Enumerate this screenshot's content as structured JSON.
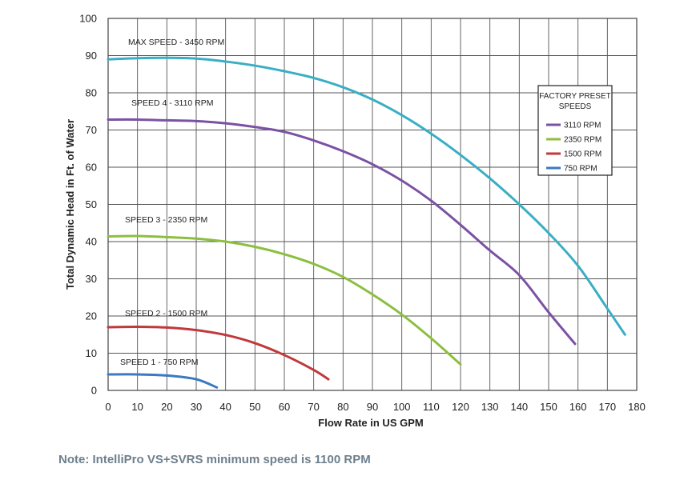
{
  "chart_data": {
    "type": "line",
    "xlabel": "Flow Rate in US GPM",
    "ylabel": "Total Dynamic Head in Ft. of Water",
    "xlim": [
      0,
      180
    ],
    "ylim": [
      0,
      100
    ],
    "xticks": [
      "0",
      "10",
      "20",
      "30",
      "40",
      "50",
      "60",
      "70",
      "80",
      "90",
      "100",
      "110",
      "120",
      "130",
      "140",
      "150",
      "160",
      "170",
      "180"
    ],
    "yticks": [
      "0",
      "10",
      "20",
      "30",
      "40",
      "50",
      "60",
      "70",
      "80",
      "90",
      "100"
    ],
    "grid": true,
    "legend_position": "right",
    "legend": {
      "title": [
        "FACTORY PRESET",
        "SPEEDS"
      ],
      "entries": [
        {
          "label": "3110 RPM",
          "color": "#7b52a3"
        },
        {
          "label": "2350 RPM",
          "color": "#8cbf3f"
        },
        {
          "label": "1500 RPM",
          "color": "#c0393b"
        },
        {
          "label": "750 RPM",
          "color": "#3b79c2"
        }
      ]
    },
    "series": [
      {
        "name": "MAX SPEED - 3450 RPM",
        "color": "#3aaec5",
        "x": [
          0,
          10,
          20,
          30,
          40,
          50,
          60,
          70,
          80,
          90,
          100,
          110,
          120,
          130,
          140,
          150,
          160,
          170,
          176
        ],
        "y": [
          89,
          89.3,
          89.4,
          89.2,
          88.4,
          87.3,
          85.8,
          84,
          81.5,
          78.2,
          74,
          69,
          63.3,
          57,
          50,
          42.3,
          33.5,
          22,
          15
        ]
      },
      {
        "name": "SPEED 4 - 3110 RPM",
        "color": "#7b52a3",
        "x": [
          0,
          10,
          20,
          30,
          40,
          50,
          60,
          70,
          80,
          90,
          100,
          110,
          120,
          130,
          140,
          150,
          159
        ],
        "y": [
          72.8,
          72.8,
          72.6,
          72.4,
          71.8,
          70.8,
          69.5,
          67.2,
          64.3,
          60.8,
          56.4,
          51,
          44.5,
          37.6,
          31,
          21,
          12.5
        ]
      },
      {
        "name": "SPEED 3 - 2350 RPM",
        "color": "#8cbf3f",
        "x": [
          0,
          10,
          20,
          30,
          40,
          50,
          60,
          70,
          80,
          90,
          100,
          110,
          120
        ],
        "y": [
          41.4,
          41.5,
          41.2,
          40.8,
          40,
          38.6,
          36.6,
          34,
          30.5,
          25.8,
          20.4,
          14,
          7
        ]
      },
      {
        "name": "SPEED 2 - 1500 RPM",
        "color": "#c0393b",
        "x": [
          0,
          10,
          20,
          30,
          40,
          50,
          60,
          70,
          75
        ],
        "y": [
          17,
          17.1,
          16.9,
          16.2,
          14.9,
          12.7,
          9.5,
          5.5,
          3
        ]
      },
      {
        "name": "SPEED 1 - 750 RPM",
        "color": "#3b79c2",
        "x": [
          0,
          10,
          20,
          30,
          37
        ],
        "y": [
          4.3,
          4.3,
          4,
          3,
          0.8
        ]
      }
    ]
  },
  "note": "Note:  IntelliPro VS+SVRS minimum speed is 1100 RPM"
}
